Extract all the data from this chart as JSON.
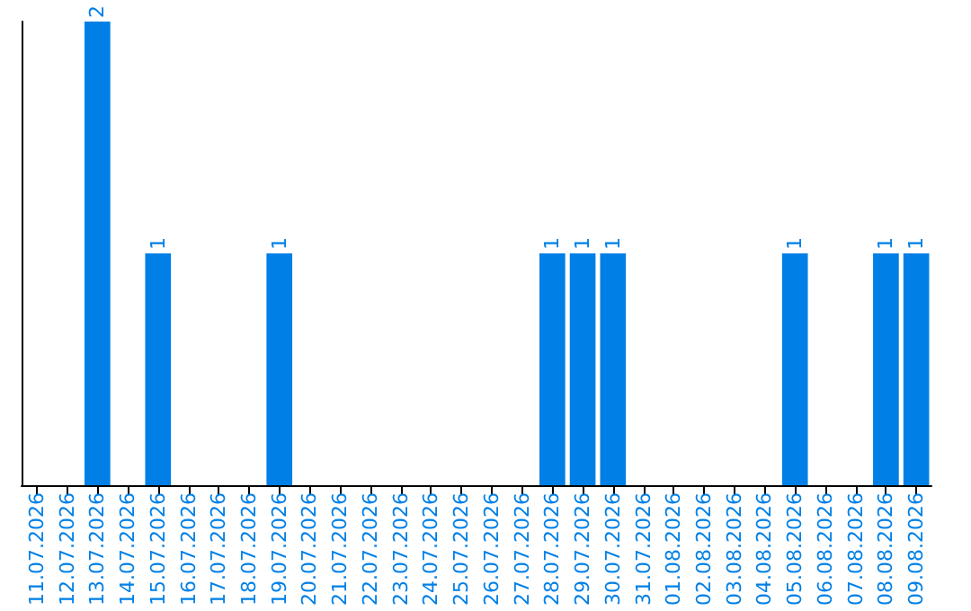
{
  "chart_data": {
    "type": "bar",
    "categories": [
      "11.07.2026",
      "12.07.2026",
      "13.07.2026",
      "14.07.2026",
      "15.07.2026",
      "16.07.2026",
      "17.07.2026",
      "18.07.2026",
      "19.07.2026",
      "20.07.2026",
      "21.07.2026",
      "22.07.2026",
      "23.07.2026",
      "24.07.2026",
      "25.07.2026",
      "26.07.2026",
      "27.07.2026",
      "28.07.2026",
      "29.07.2026",
      "30.07.2026",
      "31.07.2026",
      "01.08.2026",
      "02.08.2026",
      "03.08.2026",
      "04.08.2026",
      "05.08.2026",
      "06.08.2026",
      "07.08.2026",
      "08.08.2026",
      "09.08.2026"
    ],
    "values": [
      0,
      0,
      2,
      0,
      1,
      0,
      0,
      0,
      1,
      0,
      0,
      0,
      0,
      0,
      0,
      0,
      0,
      1,
      1,
      1,
      0,
      0,
      0,
      0,
      0,
      1,
      0,
      0,
      1,
      1
    ],
    "value_labels": [
      null,
      null,
      "2",
      null,
      "1",
      null,
      null,
      null,
      "1",
      null,
      null,
      null,
      null,
      null,
      null,
      null,
      null,
      "1",
      "1",
      "1",
      null,
      null,
      null,
      null,
      null,
      "1",
      null,
      null,
      "1",
      "1"
    ],
    "color": "#0080e6",
    "grid": false,
    "tick_labels": "x"
  }
}
